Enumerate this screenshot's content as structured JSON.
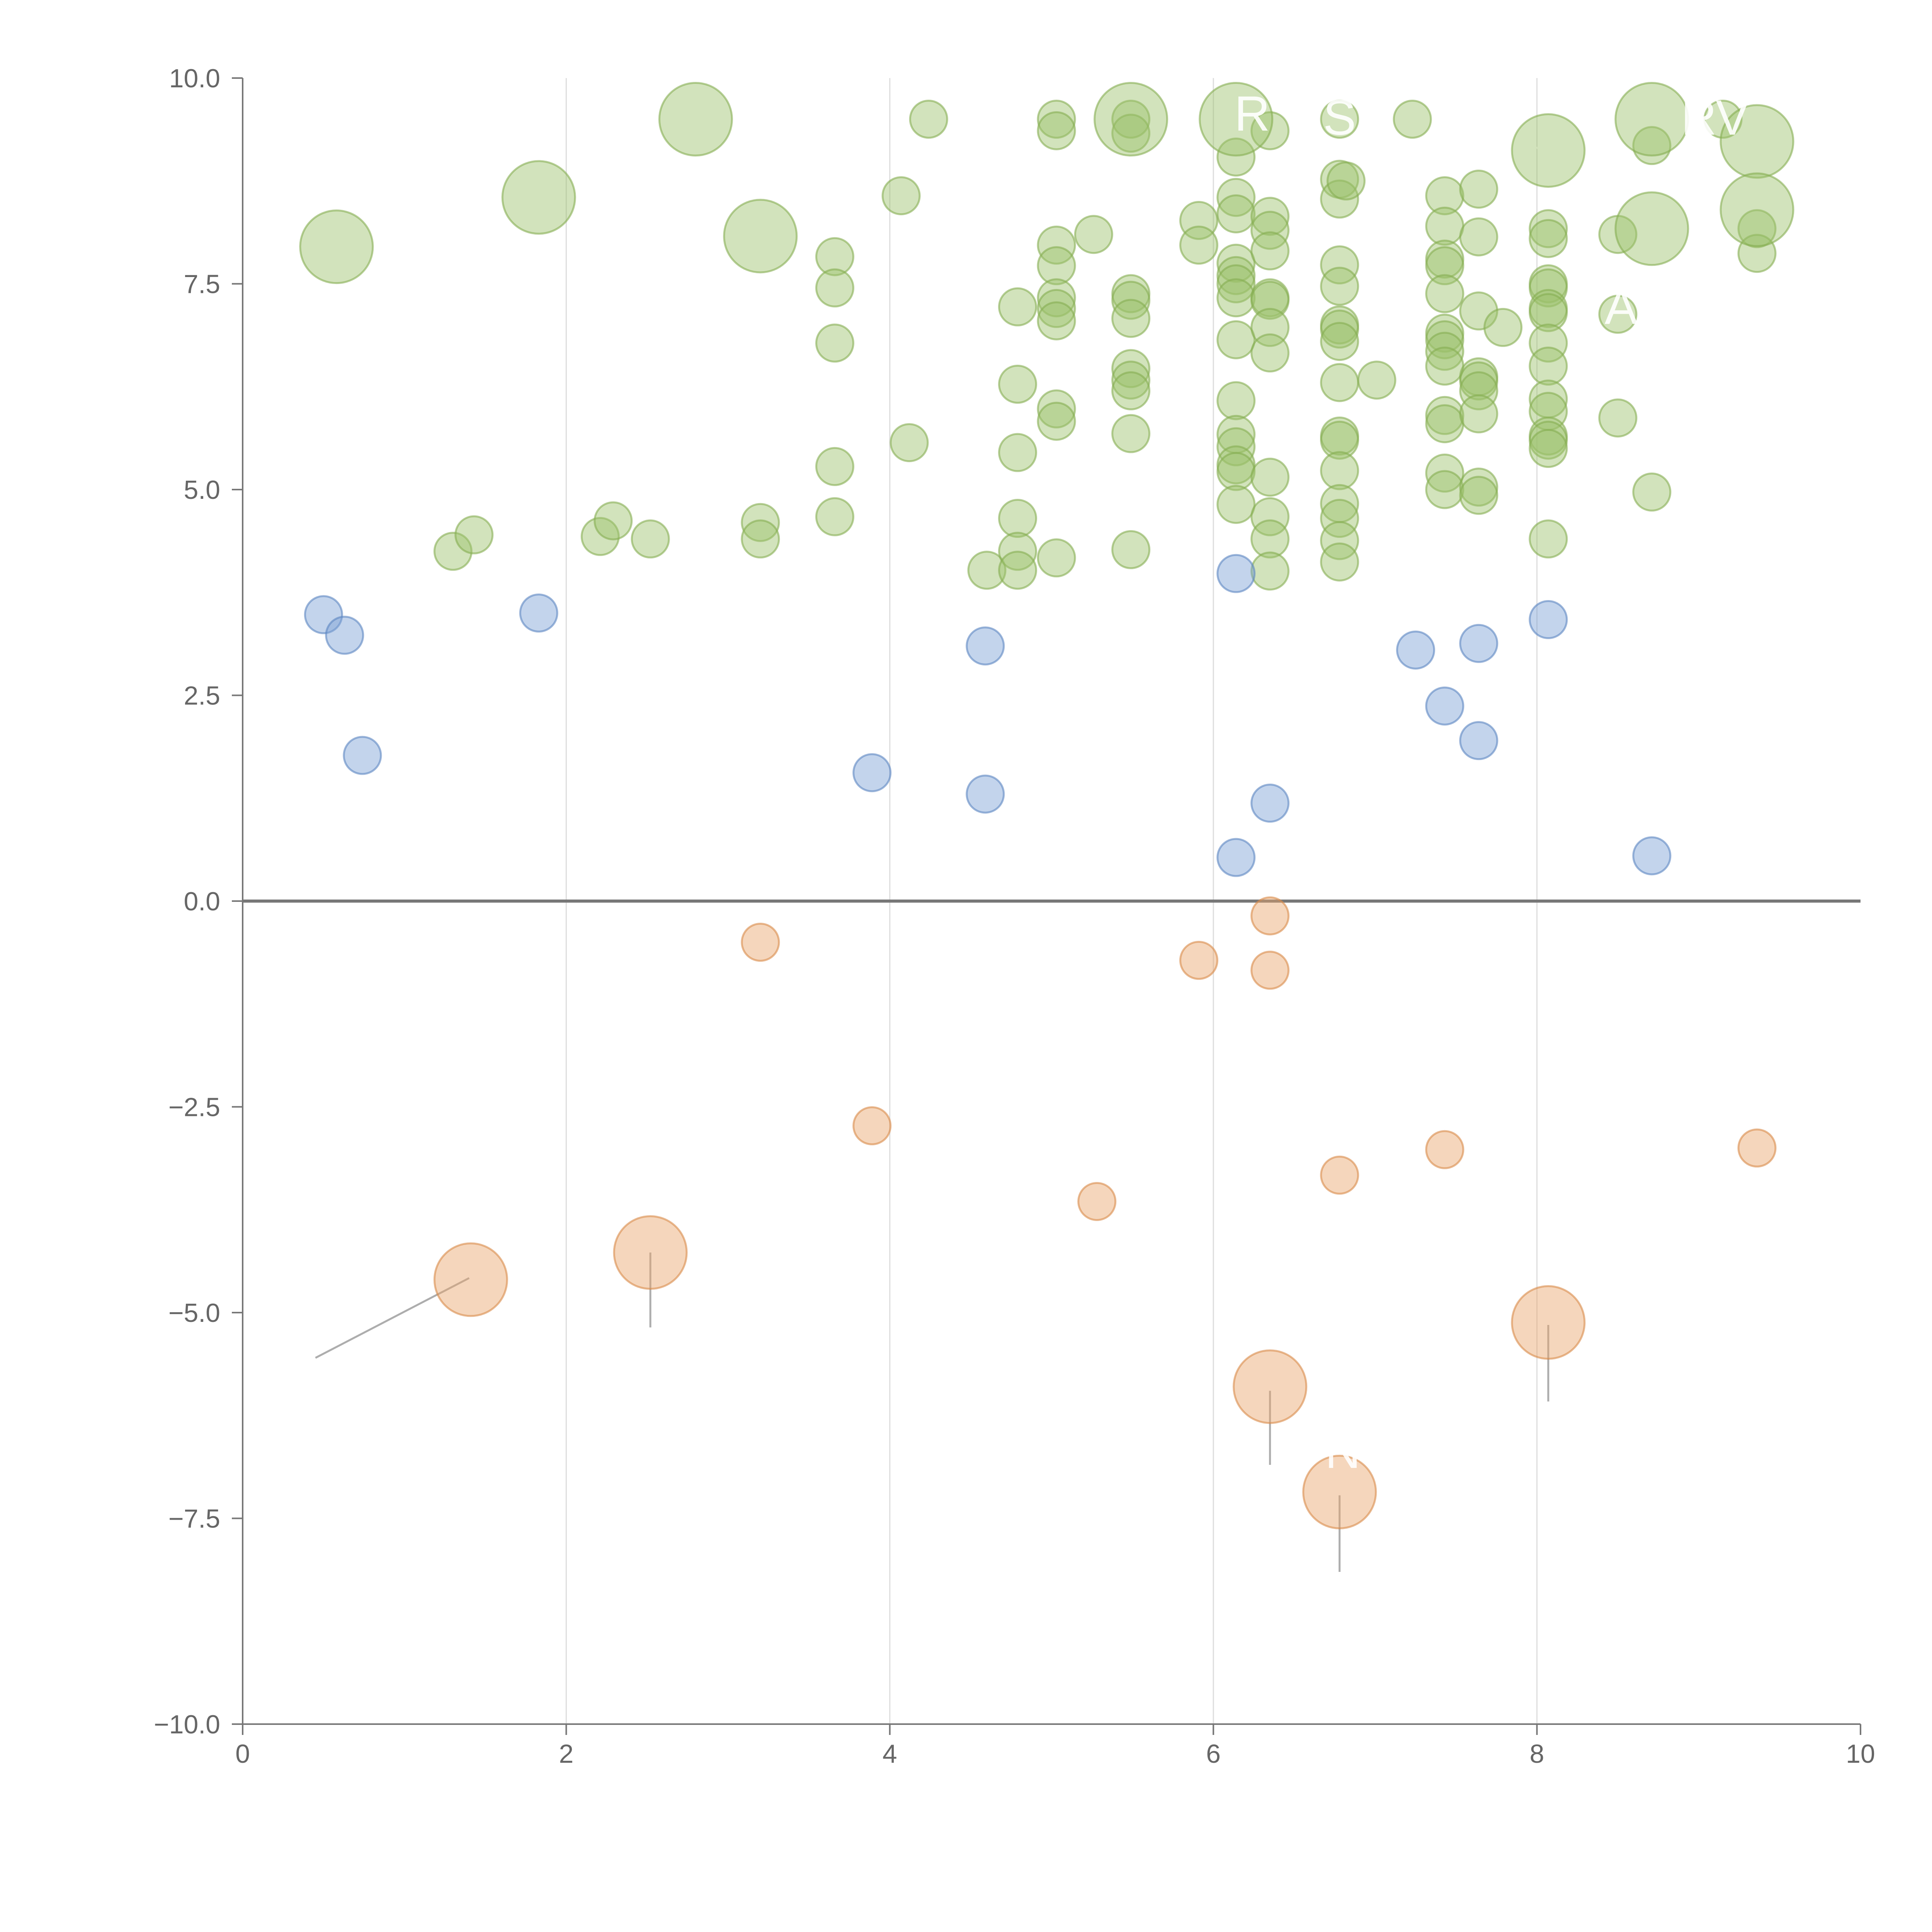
{
  "chart_data": {
    "type": "scatter",
    "title": "",
    "xlabel": "",
    "ylabel": "",
    "xlim": [
      0,
      10
    ],
    "ylim": [
      -10,
      10
    ],
    "x_ticks": [
      "0",
      "2",
      "4",
      "6",
      "8",
      "10"
    ],
    "y_ticks": [
      "10.0",
      "7.5",
      "5.0",
      "2.5",
      "0.0",
      "−2.5",
      "−5.0",
      "−7.5",
      "−10.0"
    ],
    "x_tick_values": [
      0,
      2,
      4,
      6,
      8,
      10
    ],
    "y_tick_values": [
      10,
      7.5,
      5,
      2.5,
      0,
      -2.5,
      -5,
      -7.5,
      -10
    ],
    "vertical_gridlines": [
      2,
      4,
      6,
      8
    ],
    "zero_line": 0,
    "colors": {
      "green_fill": "#9bc16a",
      "green_stroke": "#86ad52",
      "blue_fill": "#7aa0d4",
      "blue_stroke": "#5b86c2",
      "orange_fill": "#e8a36b",
      "orange_stroke": "#d98a4a",
      "axis": "#777777",
      "grid": "#dddddd",
      "tick_text": "#666666",
      "label_line": "#999999"
    },
    "series": [
      {
        "name": "positive-high",
        "color": "green",
        "points": [
          [
            1.3,
            4.25
          ],
          [
            1.43,
            4.45
          ],
          [
            2.21,
            4.43
          ],
          [
            2.29,
            4.62
          ],
          [
            2.52,
            4.4
          ],
          [
            3.2,
            4.6
          ],
          [
            3.2,
            4.4
          ],
          [
            3.66,
            7.83
          ],
          [
            3.66,
            7.45
          ],
          [
            3.66,
            6.78
          ],
          [
            3.66,
            5.28
          ],
          [
            3.66,
            4.67
          ],
          [
            4.07,
            8.57
          ],
          [
            4.12,
            5.57
          ],
          [
            4.24,
            9.5
          ],
          [
            4.6,
            4.02
          ],
          [
            4.79,
            7.22
          ],
          [
            4.79,
            6.28
          ],
          [
            4.79,
            5.45
          ],
          [
            4.79,
            4.65
          ],
          [
            4.79,
            4.25
          ],
          [
            4.79,
            4.02
          ],
          [
            5.03,
            9.5
          ],
          [
            5.03,
            9.36
          ],
          [
            5.03,
            7.97
          ],
          [
            5.03,
            7.72
          ],
          [
            5.03,
            7.33
          ],
          [
            5.03,
            7.2
          ],
          [
            5.03,
            7.05
          ],
          [
            5.03,
            5.98
          ],
          [
            5.03,
            5.83
          ],
          [
            5.03,
            4.17
          ],
          [
            5.26,
            8.1
          ],
          [
            5.49,
            9.5
          ],
          [
            5.49,
            9.33
          ],
          [
            5.49,
            7.38
          ],
          [
            5.49,
            7.3
          ],
          [
            5.49,
            7.08
          ],
          [
            5.49,
            6.47
          ],
          [
            5.49,
            6.33
          ],
          [
            5.49,
            6.2
          ],
          [
            5.49,
            5.68
          ],
          [
            5.49,
            4.27
          ],
          [
            5.91,
            8.27
          ],
          [
            5.91,
            7.97
          ],
          [
            6.14,
            9.04
          ],
          [
            6.14,
            8.55
          ],
          [
            6.14,
            8.35
          ],
          [
            6.14,
            7.75
          ],
          [
            6.14,
            7.6
          ],
          [
            6.14,
            7.5
          ],
          [
            6.14,
            7.33
          ],
          [
            6.14,
            6.82
          ],
          [
            6.14,
            6.08
          ],
          [
            6.14,
            5.67
          ],
          [
            6.14,
            5.52
          ],
          [
            6.14,
            5.3
          ],
          [
            6.14,
            5.22
          ],
          [
            6.14,
            4.82
          ],
          [
            6.35,
            9.36
          ],
          [
            6.35,
            8.32
          ],
          [
            6.35,
            8.15
          ],
          [
            6.35,
            7.9
          ],
          [
            6.35,
            7.33
          ],
          [
            6.35,
            7.3
          ],
          [
            6.35,
            6.97
          ],
          [
            6.35,
            6.66
          ],
          [
            6.35,
            5.15
          ],
          [
            6.35,
            4.67
          ],
          [
            6.35,
            4.4
          ],
          [
            6.35,
            4.01
          ],
          [
            6.78,
            9.5
          ],
          [
            6.78,
            8.77
          ],
          [
            6.78,
            8.53
          ],
          [
            6.78,
            7.73
          ],
          [
            6.78,
            7.47
          ],
          [
            6.78,
            7.0
          ],
          [
            6.78,
            6.95
          ],
          [
            6.78,
            6.8
          ],
          [
            6.78,
            6.3
          ],
          [
            6.78,
            5.65
          ],
          [
            6.78,
            5.6
          ],
          [
            6.78,
            5.23
          ],
          [
            6.78,
            4.83
          ],
          [
            6.78,
            4.65
          ],
          [
            6.78,
            4.38
          ],
          [
            6.78,
            4.12
          ],
          [
            6.82,
            8.75
          ],
          [
            7.01,
            6.33
          ],
          [
            7.23,
            9.5
          ],
          [
            7.43,
            8.57
          ],
          [
            7.43,
            8.2
          ],
          [
            7.43,
            7.8
          ],
          [
            7.43,
            7.72
          ],
          [
            7.43,
            7.38
          ],
          [
            7.43,
            6.9
          ],
          [
            7.43,
            6.82
          ],
          [
            7.43,
            6.68
          ],
          [
            7.43,
            6.5
          ],
          [
            7.43,
            5.9
          ],
          [
            7.43,
            5.8
          ],
          [
            7.43,
            5.2
          ],
          [
            7.43,
            5.0
          ],
          [
            7.64,
            8.65
          ],
          [
            7.64,
            8.07
          ],
          [
            7.64,
            7.17
          ],
          [
            7.64,
            6.37
          ],
          [
            7.64,
            6.32
          ],
          [
            7.64,
            6.2
          ],
          [
            7.64,
            5.92
          ],
          [
            7.64,
            5.03
          ],
          [
            7.64,
            4.93
          ],
          [
            7.79,
            6.97
          ],
          [
            8.07,
            8.17
          ],
          [
            8.07,
            8.05
          ],
          [
            8.07,
            7.5
          ],
          [
            8.07,
            7.45
          ],
          [
            8.07,
            7.2
          ],
          [
            8.07,
            7.15
          ],
          [
            8.07,
            6.78
          ],
          [
            8.07,
            6.5
          ],
          [
            8.07,
            6.1
          ],
          [
            8.07,
            5.95
          ],
          [
            8.07,
            5.65
          ],
          [
            8.07,
            5.6
          ],
          [
            8.07,
            5.5
          ],
          [
            8.07,
            4.4
          ],
          [
            8.5,
            8.1
          ],
          [
            8.5,
            7.13
          ],
          [
            8.5,
            5.87
          ],
          [
            8.71,
            9.18
          ],
          [
            8.71,
            4.97
          ],
          [
            9.15,
            9.5
          ],
          [
            9.36,
            8.17
          ],
          [
            9.36,
            7.87
          ]
        ]
      },
      {
        "name": "positive-low",
        "color": "blue",
        "points": [
          [
            0.5,
            3.48
          ],
          [
            0.63,
            3.23
          ],
          [
            0.74,
            1.77
          ],
          [
            1.83,
            3.5
          ],
          [
            3.89,
            1.56
          ],
          [
            4.59,
            3.1
          ],
          [
            4.59,
            1.3
          ],
          [
            6.14,
            3.98
          ],
          [
            6.14,
            0.53
          ],
          [
            6.35,
            1.19
          ],
          [
            7.25,
            3.05
          ],
          [
            7.43,
            2.37
          ],
          [
            7.64,
            3.13
          ],
          [
            7.64,
            1.95
          ],
          [
            8.07,
            3.42
          ],
          [
            8.71,
            0.55
          ]
        ]
      },
      {
        "name": "negative",
        "color": "orange",
        "points": [
          [
            3.2,
            -0.5
          ],
          [
            3.89,
            -2.73
          ],
          [
            5.28,
            -3.65
          ],
          [
            5.91,
            -0.72
          ],
          [
            6.35,
            -0.18
          ],
          [
            6.35,
            -0.84
          ],
          [
            6.78,
            -3.33
          ],
          [
            7.43,
            -3.02
          ],
          [
            9.36,
            -3.0
          ]
        ]
      }
    ],
    "highlighted": [
      {
        "x": 0.58,
        "y": 7.95,
        "color": "green",
        "size": "large"
      },
      {
        "x": 1.83,
        "y": 8.55,
        "color": "green",
        "size": "large"
      },
      {
        "x": 2.8,
        "y": 9.5,
        "color": "green",
        "size": "large"
      },
      {
        "x": 3.2,
        "y": 8.08,
        "color": "green",
        "size": "large"
      },
      {
        "x": 5.49,
        "y": 9.5,
        "color": "green",
        "size": "large"
      },
      {
        "x": 6.14,
        "y": 9.5,
        "color": "green",
        "size": "large"
      },
      {
        "x": 8.07,
        "y": 9.12,
        "color": "green",
        "size": "large"
      },
      {
        "x": 8.71,
        "y": 9.5,
        "color": "green",
        "size": "large"
      },
      {
        "x": 8.71,
        "y": 8.17,
        "color": "green",
        "size": "large"
      },
      {
        "x": 9.36,
        "y": 9.23,
        "color": "green",
        "size": "large"
      },
      {
        "x": 9.36,
        "y": 8.4,
        "color": "green",
        "size": "large"
      },
      {
        "x": 1.41,
        "y": -4.6,
        "color": "orange",
        "size": "large"
      },
      {
        "x": 2.52,
        "y": -4.27,
        "color": "orange",
        "size": "large"
      },
      {
        "x": 6.35,
        "y": -5.9,
        "color": "orange",
        "size": "large"
      },
      {
        "x": 6.78,
        "y": -7.18,
        "color": "orange",
        "size": "large"
      },
      {
        "x": 8.07,
        "y": -5.12,
        "color": "orange",
        "size": "large"
      }
    ],
    "leader_lines": [
      {
        "x1": 0.63,
        "y1": 7.93,
        "x2": 0.7,
        "y2": 7.6
      },
      {
        "x1": 1.79,
        "y1": 8.55,
        "x2": 1.62,
        "y2": 8.75
      },
      {
        "x1": 2.8,
        "y1": 9.45,
        "x2": 2.73,
        "y2": 9.05
      },
      {
        "x1": 3.2,
        "y1": 8.07,
        "x2": 3.05,
        "y2": 7.75
      },
      {
        "x1": 5.49,
        "y1": 9.5,
        "x2": 4.1,
        "y2": 9.5
      },
      {
        "x1": 6.14,
        "y1": 9.5,
        "x2": 6.05,
        "y2": 9.3
      },
      {
        "x1": 8.07,
        "y1": 9.1,
        "x2": 7.8,
        "y2": 9.3
      },
      {
        "x1": 8.71,
        "y1": 9.5,
        "x2": 8.1,
        "y2": 9.45
      },
      {
        "x1": 8.71,
        "y1": 8.17,
        "x2": 8.78,
        "y2": 7.85
      },
      {
        "x1": 9.36,
        "y1": 9.23,
        "x2": 9.2,
        "y2": 9.5
      },
      {
        "x1": 9.36,
        "y1": 8.4,
        "x2": 9.32,
        "y2": 7.95
      },
      {
        "x1": 1.4,
        "y1": -4.58,
        "x2": 0.45,
        "y2": -5.55
      },
      {
        "x1": 2.52,
        "y1": -4.27,
        "x2": 2.52,
        "y2": -5.18
      },
      {
        "x1": 6.35,
        "y1": -5.95,
        "x2": 6.35,
        "y2": -6.85
      },
      {
        "x1": 6.78,
        "y1": -7.22,
        "x2": 6.78,
        "y2": -8.15
      },
      {
        "x1": 8.07,
        "y1": -5.15,
        "x2": 8.07,
        "y2": -6.08
      }
    ],
    "annotations": [
      {
        "text": "R",
        "x": 6.24,
        "y": 9.55
      },
      {
        "text": "S",
        "x": 6.78,
        "y": 9.5
      },
      {
        "text": "RV",
        "x": 9.1,
        "y": 9.5
      },
      {
        "text": "A",
        "x": 8.52,
        "y": 7.2
      },
      {
        "text": "N",
        "x": 6.8,
        "y": -6.7
      }
    ]
  }
}
